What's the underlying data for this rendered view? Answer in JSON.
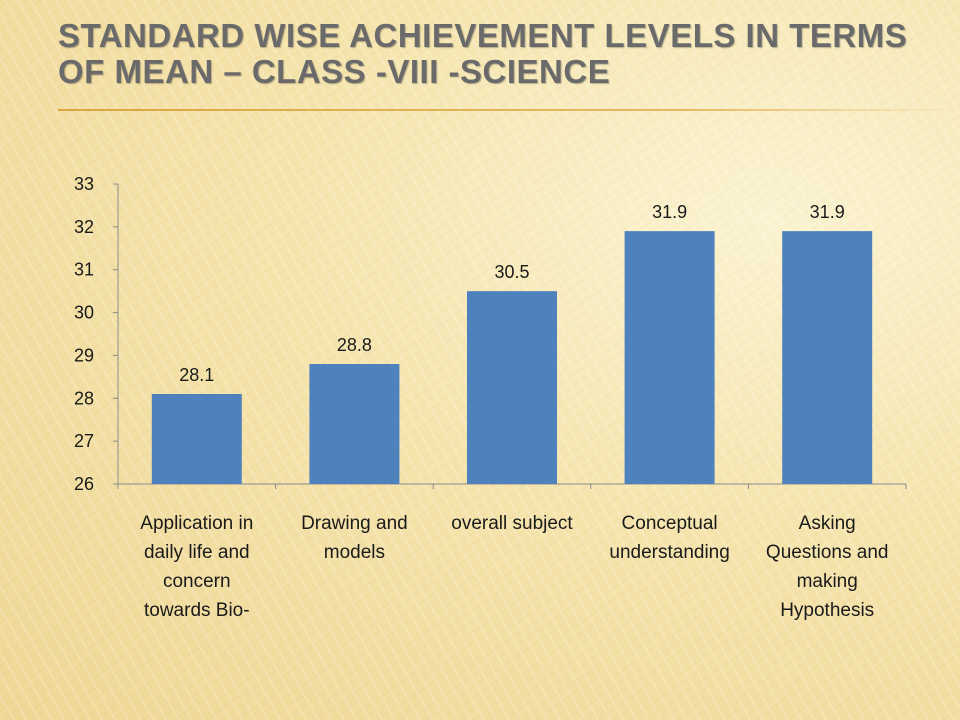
{
  "slide": {
    "title": "Standard wise Achievement Levels in terms of Mean – Class -VIII -Science"
  },
  "colors": {
    "bar": "#4f81bd",
    "axis": "#8c8c8c",
    "title_text": "#6a6a6a",
    "rule": "#d9a642"
  },
  "chart_data": {
    "type": "bar",
    "categories": [
      [
        "Application in",
        "daily life  and",
        "concern",
        "towards Bio-"
      ],
      [
        "Drawing and",
        "models"
      ],
      [
        "overall subject"
      ],
      [
        "Conceptual",
        "understanding"
      ],
      [
        "Asking",
        "Questions and",
        "making",
        "Hypothesis"
      ]
    ],
    "values": [
      28.1,
      28.8,
      30.5,
      31.9,
      31.9
    ],
    "data_labels": [
      "28.1",
      "28.8",
      "30.5",
      "31.9",
      "31.9"
    ],
    "yticks": [
      26,
      27,
      28,
      29,
      30,
      31,
      32,
      33
    ],
    "ylim": [
      26,
      33
    ],
    "title": "",
    "xlabel": "",
    "ylabel": "",
    "grid": false,
    "legend": "none"
  }
}
